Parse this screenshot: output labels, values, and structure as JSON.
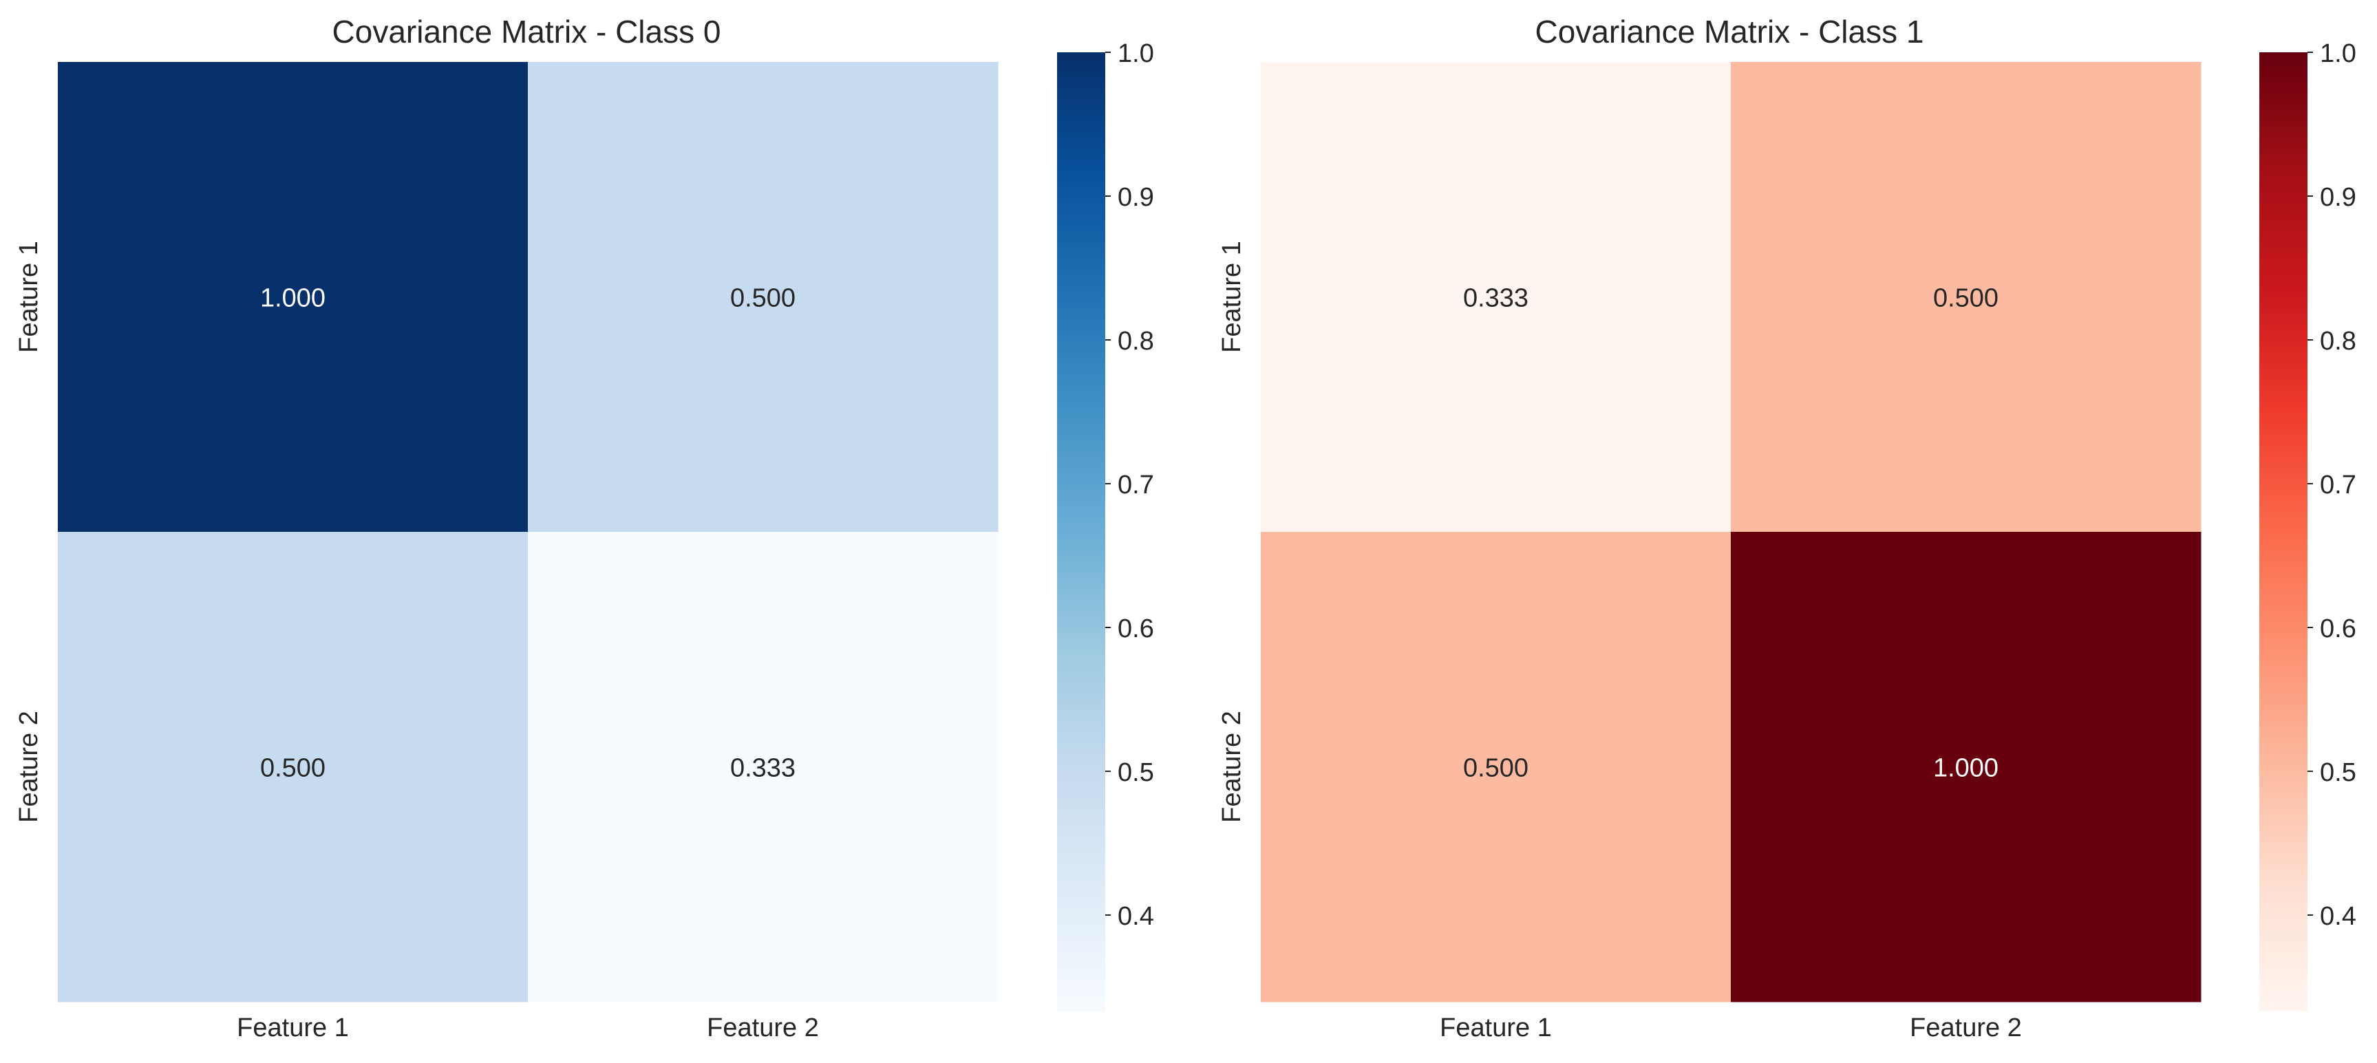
{
  "chart_data": [
    {
      "type": "heatmap",
      "title": "Covariance Matrix - Class 0",
      "x_categories": [
        "Feature 1",
        "Feature 2"
      ],
      "y_categories": [
        "Feature 1",
        "Feature 2"
      ],
      "values": [
        [
          1.0,
          0.5
        ],
        [
          0.5,
          0.333
        ]
      ],
      "annotations": [
        [
          "1.000",
          "0.500"
        ],
        [
          "0.500",
          "0.333"
        ]
      ],
      "colormap": "Blues",
      "colormap_stops": [
        "#f7fbff",
        "#deebf7",
        "#c6dbef",
        "#9ecae1",
        "#6baed6",
        "#4292c6",
        "#2171b5",
        "#08519c",
        "#08306b"
      ],
      "colorbar": {
        "range": [
          0.333,
          1.0
        ],
        "ticks": [
          0.4,
          0.5,
          0.6,
          0.7,
          0.8,
          0.9,
          1.0
        ],
        "tick_labels": [
          "0.4",
          "0.5",
          "0.6",
          "0.7",
          "0.8",
          "0.9",
          "1.0"
        ]
      },
      "xlabel": "",
      "ylabel": ""
    },
    {
      "type": "heatmap",
      "title": "Covariance Matrix - Class 1",
      "x_categories": [
        "Feature 1",
        "Feature 2"
      ],
      "y_categories": [
        "Feature 1",
        "Feature 2"
      ],
      "values": [
        [
          0.333,
          0.5
        ],
        [
          0.5,
          1.0
        ]
      ],
      "annotations": [
        [
          "0.333",
          "0.500"
        ],
        [
          "0.500",
          "1.000"
        ]
      ],
      "colormap": "Reds",
      "colormap_stops": [
        "#fff5f0",
        "#fee0d2",
        "#fcbba1",
        "#fc9272",
        "#fb6a4a",
        "#ef3b2c",
        "#cb181d",
        "#a50f15",
        "#67000d"
      ],
      "colorbar": {
        "range": [
          0.333,
          1.0
        ],
        "ticks": [
          0.4,
          0.5,
          0.6,
          0.7,
          0.8,
          0.9,
          1.0
        ],
        "tick_labels": [
          "0.4",
          "0.5",
          "0.6",
          "0.7",
          "0.8",
          "0.9",
          "1.0"
        ]
      },
      "xlabel": "",
      "ylabel": ""
    }
  ]
}
